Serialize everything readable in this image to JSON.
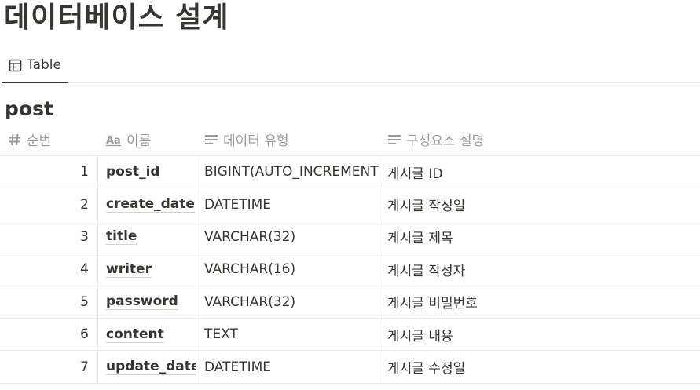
{
  "page": {
    "title": "데이터베이스 설계"
  },
  "view": {
    "tab_label": "Table"
  },
  "database": {
    "title": "post"
  },
  "columns": [
    {
      "label": "순번",
      "icon": "hash-icon"
    },
    {
      "label": "이름",
      "icon": "title-aa-icon"
    },
    {
      "label": "데이터 유형",
      "icon": "text-lines-icon"
    },
    {
      "label": "구성요소 설명",
      "icon": "text-lines-icon"
    }
  ],
  "rows": [
    {
      "no": "1",
      "name": "post_id",
      "type": "BIGINT(AUTO_INCREMENT)",
      "desc": "게시글 ID"
    },
    {
      "no": "2",
      "name": "create_date",
      "type": "DATETIME",
      "desc": "게시글 작성일"
    },
    {
      "no": "3",
      "name": "title",
      "type": "VARCHAR(32)",
      "desc": "게시글 제목"
    },
    {
      "no": "4",
      "name": "writer",
      "type": "VARCHAR(16)",
      "desc": "게시글 작성자"
    },
    {
      "no": "5",
      "name": "password",
      "type": "VARCHAR(32)",
      "desc": "게시글 비밀번호"
    },
    {
      "no": "6",
      "name": "content",
      "type": "TEXT",
      "desc": "게시글 내용"
    },
    {
      "no": "7",
      "name": "update_date",
      "type": "DATETIME",
      "desc": "게시글 수정일"
    }
  ],
  "colors": {
    "text": "#37352f",
    "muted": "#9b9a97",
    "border": "#e9e9e7"
  }
}
